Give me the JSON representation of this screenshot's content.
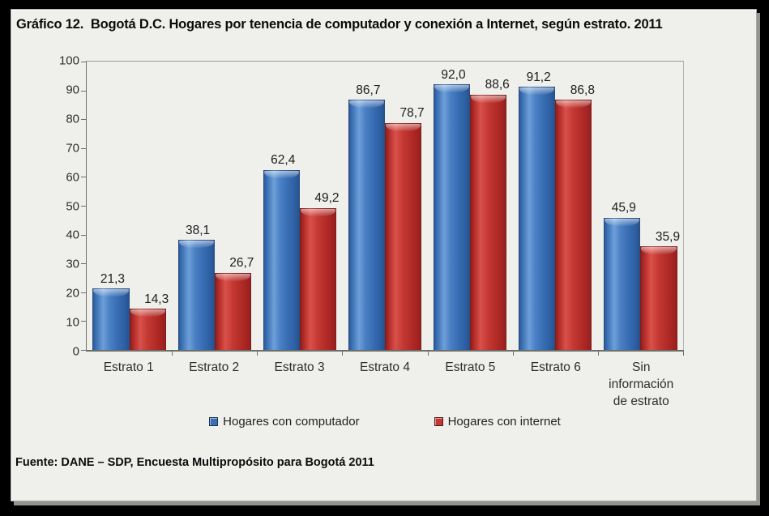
{
  "title": "Gráfico 12.  Bogotá D.C. Hogares por tenencia de computador y conexión a Internet, según estrato. 2011",
  "footer": "Fuente: DANE – SDP, Encuesta Multipropósito para Bogotá 2011",
  "colors": {
    "computador_bar": "#3A6FB5",
    "internet_bar": "#C23833",
    "card_background": "#EFEFEC",
    "outer_frame": "#000000",
    "axis": "#6E6E6A",
    "text": "#222222"
  },
  "chart_data": {
    "type": "bar",
    "title": "Gráfico 12.  Bogotá D.C. Hogares por tenencia de computador y conexión a Internet, según estrato. 2011",
    "categories": [
      "Estrato 1",
      "Estrato 2",
      "Estrato 3",
      "Estrato 4",
      "Estrato 5",
      "Estrato 6",
      "Sin información de estrato"
    ],
    "series": [
      {
        "name": "Hogares con computador",
        "color": "#3A6FB5",
        "values": [
          21.3,
          38.1,
          62.4,
          86.7,
          92.0,
          91.2,
          45.9
        ],
        "labels": [
          "21,3",
          "38,1",
          "62,4",
          "86,7",
          "92,0",
          "91,2",
          "45,9"
        ]
      },
      {
        "name": "Hogares con internet",
        "color": "#C23833",
        "values": [
          14.3,
          26.7,
          49.2,
          78.7,
          88.6,
          86.8,
          35.9
        ],
        "labels": [
          "14,3",
          "26,7",
          "49,2",
          "78,7",
          "88,6",
          "86,8",
          "35,9"
        ]
      }
    ],
    "xlabel": "",
    "ylabel": "",
    "ylim": [
      0,
      100
    ],
    "yticks": [
      0,
      10,
      20,
      30,
      40,
      50,
      60,
      70,
      80,
      90,
      100
    ],
    "grid": false,
    "legend_position": "bottom",
    "source": "Fuente: DANE – SDP, Encuesta Multipropósito para Bogotá 2011"
  }
}
